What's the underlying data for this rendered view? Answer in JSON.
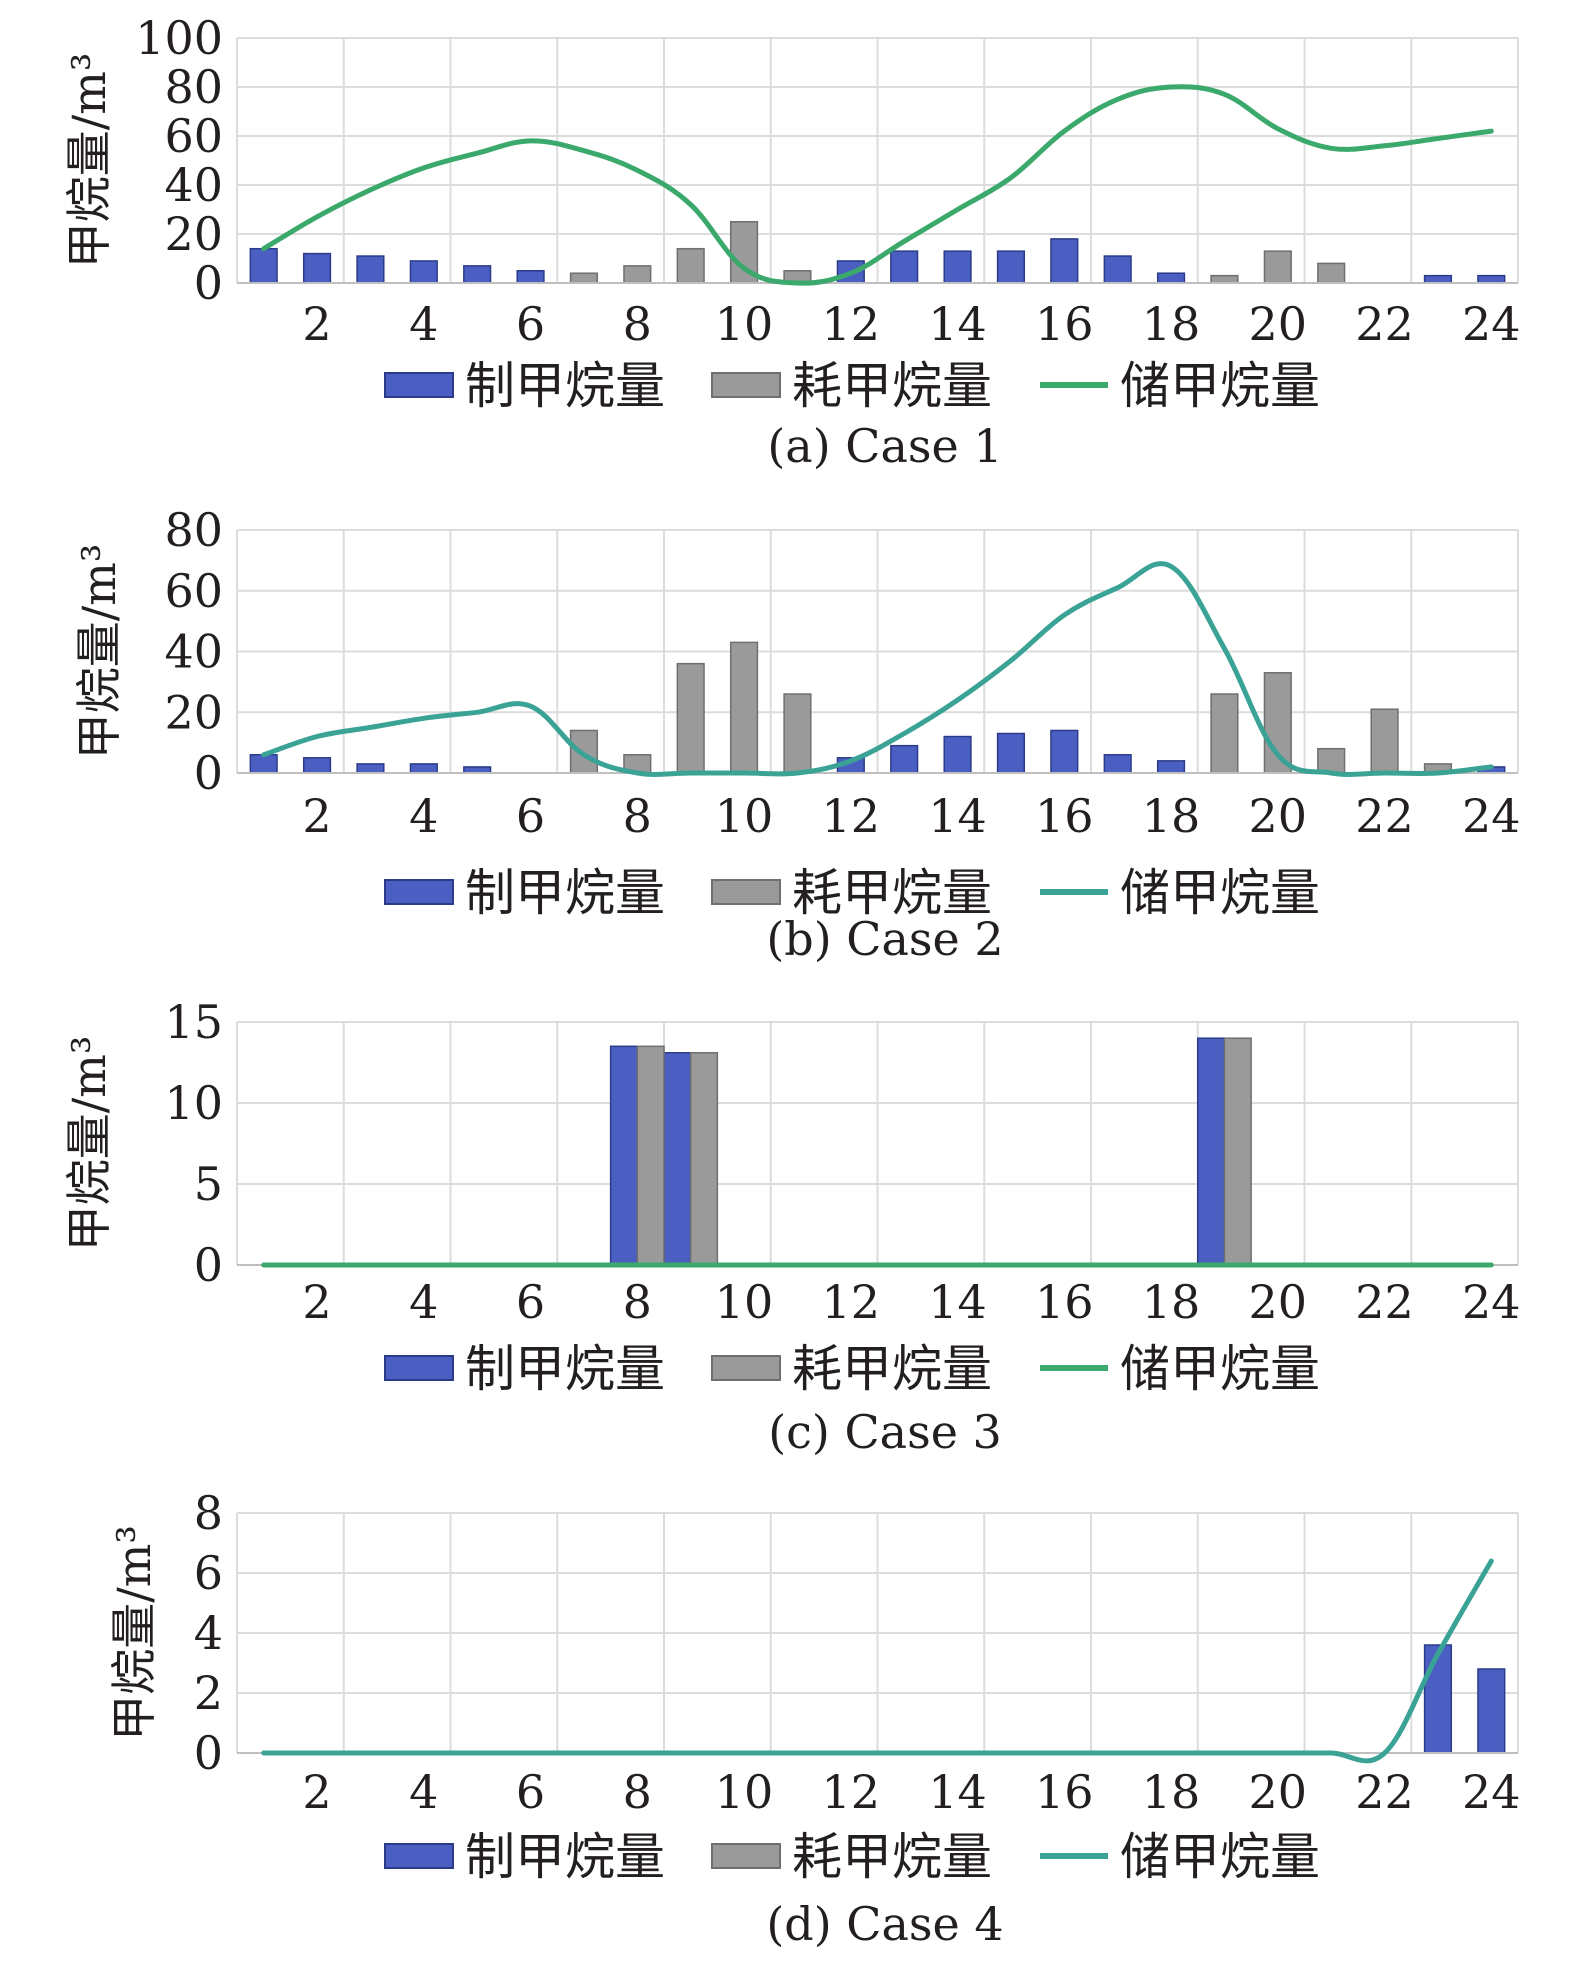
{
  "chart_data": [
    {
      "type": "bar",
      "caption": "(a) Case 1",
      "ylabel": "甲烷量/m³",
      "ylim": [
        0,
        100
      ],
      "yticks": [
        0,
        20,
        40,
        60,
        80,
        100
      ],
      "x": [
        1,
        2,
        3,
        4,
        5,
        6,
        7,
        8,
        9,
        10,
        11,
        12,
        13,
        14,
        15,
        16,
        17,
        18,
        19,
        20,
        21,
        22,
        23,
        24
      ],
      "xticks": [
        2,
        4,
        6,
        8,
        10,
        12,
        14,
        16,
        18,
        20,
        22,
        24
      ],
      "grid": true,
      "legend_position": "bottom",
      "series": [
        {
          "name": "制甲烷量",
          "type": "bar",
          "color": "#4a5fc1",
          "values": [
            14,
            12,
            11,
            9,
            7,
            5,
            0,
            0,
            0,
            0,
            0,
            9,
            13,
            13,
            13,
            18,
            11,
            4,
            0,
            0,
            0,
            0,
            3,
            3
          ]
        },
        {
          "name": "耗甲烷量",
          "type": "bar",
          "color": "#9a9a9a",
          "values": [
            0,
            0,
            0,
            0,
            0,
            0,
            4,
            7,
            14,
            25,
            5,
            0,
            0,
            0,
            0,
            0,
            0,
            0,
            3,
            13,
            8,
            0,
            0,
            0
          ]
        },
        {
          "name": "储甲烷量",
          "type": "line",
          "color": "#3aa96b",
          "values": [
            14,
            27,
            38,
            47,
            53,
            58,
            54,
            46,
            32,
            6,
            0,
            4,
            17,
            30,
            43,
            62,
            75,
            80,
            77,
            63,
            55,
            56,
            59,
            62
          ]
        }
      ]
    },
    {
      "type": "bar",
      "caption": "(b) Case 2",
      "ylabel": "甲烷量/m³",
      "ylim": [
        0,
        80
      ],
      "yticks": [
        0,
        20,
        40,
        60,
        80
      ],
      "x": [
        1,
        2,
        3,
        4,
        5,
        6,
        7,
        8,
        9,
        10,
        11,
        12,
        13,
        14,
        15,
        16,
        17,
        18,
        19,
        20,
        21,
        22,
        23,
        24
      ],
      "xticks": [
        2,
        4,
        6,
        8,
        10,
        12,
        14,
        16,
        18,
        20,
        22,
        24
      ],
      "grid": true,
      "legend_position": "bottom",
      "series": [
        {
          "name": "制甲烷量",
          "type": "bar",
          "color": "#4a5fc1",
          "values": [
            6,
            5,
            3,
            3,
            2,
            0,
            0,
            0,
            0,
            0,
            0,
            5,
            9,
            12,
            13,
            14,
            6,
            4,
            0,
            0,
            0,
            0,
            0,
            2
          ]
        },
        {
          "name": "耗甲烷量",
          "type": "bar",
          "color": "#9a9a9a",
          "values": [
            0,
            0,
            0,
            0,
            0,
            0,
            14,
            6,
            36,
            43,
            26,
            0,
            0,
            0,
            0,
            0,
            0,
            0,
            26,
            33,
            8,
            21,
            3,
            0
          ]
        },
        {
          "name": "储甲烷量",
          "type": "line",
          "color": "#3aa396",
          "values": [
            6,
            12,
            15,
            18,
            20,
            22,
            6,
            0,
            0,
            0,
            0,
            4,
            13,
            24,
            37,
            52,
            61,
            68,
            41,
            6,
            0,
            0,
            0,
            2
          ]
        }
      ]
    },
    {
      "type": "bar",
      "caption": "(c) Case 3",
      "ylabel": "甲烷量/m³",
      "ylim": [
        0,
        15
      ],
      "yticks": [
        0,
        5,
        10,
        15
      ],
      "x": [
        1,
        2,
        3,
        4,
        5,
        6,
        7,
        8,
        9,
        10,
        11,
        12,
        13,
        14,
        15,
        16,
        17,
        18,
        19,
        20,
        21,
        22,
        23,
        24
      ],
      "xticks": [
        2,
        4,
        6,
        8,
        10,
        12,
        14,
        16,
        18,
        20,
        22,
        24
      ],
      "grid": true,
      "legend_position": "bottom",
      "series": [
        {
          "name": "制甲烷量",
          "type": "bar",
          "color": "#4a5fc1",
          "values": [
            0,
            0,
            0,
            0,
            0,
            0,
            0,
            13.5,
            13.1,
            0,
            0,
            0,
            0,
            0,
            0,
            0,
            0,
            0,
            14,
            0,
            0,
            0,
            0,
            0
          ]
        },
        {
          "name": "耗甲烷量",
          "type": "bar",
          "color": "#9a9a9a",
          "values": [
            0,
            0,
            0,
            0,
            0,
            0,
            0,
            13.5,
            13.1,
            0,
            0,
            0,
            0,
            0,
            0,
            0,
            0,
            0,
            14,
            0,
            0,
            0,
            0,
            0
          ]
        },
        {
          "name": "储甲烷量",
          "type": "line",
          "color": "#3aa96b",
          "values": [
            0,
            0,
            0,
            0,
            0,
            0,
            0,
            0,
            0,
            0,
            0,
            0,
            0,
            0,
            0,
            0,
            0,
            0,
            0,
            0,
            0,
            0,
            0,
            0
          ]
        }
      ]
    },
    {
      "type": "bar",
      "caption": "(d) Case 4",
      "ylabel": "甲烷量/m³",
      "ylim": [
        0,
        8
      ],
      "yticks": [
        0,
        2,
        4,
        6,
        8
      ],
      "x": [
        1,
        2,
        3,
        4,
        5,
        6,
        7,
        8,
        9,
        10,
        11,
        12,
        13,
        14,
        15,
        16,
        17,
        18,
        19,
        20,
        21,
        22,
        23,
        24
      ],
      "xticks": [
        2,
        4,
        6,
        8,
        10,
        12,
        14,
        16,
        18,
        20,
        22,
        24
      ],
      "grid": true,
      "legend_position": "bottom",
      "series": [
        {
          "name": "制甲烷量",
          "type": "bar",
          "color": "#4a5fc1",
          "values": [
            0,
            0,
            0,
            0,
            0,
            0,
            0,
            0,
            0,
            0,
            0,
            0,
            0,
            0,
            0,
            0,
            0,
            0,
            0,
            0,
            0,
            0,
            3.6,
            2.8
          ]
        },
        {
          "name": "耗甲烷量",
          "type": "bar",
          "color": "#9a9a9a",
          "values": [
            0,
            0,
            0,
            0,
            0,
            0,
            0,
            0,
            0,
            0,
            0,
            0,
            0,
            0,
            0,
            0,
            0,
            0,
            0,
            0,
            0,
            0,
            0,
            0
          ]
        },
        {
          "name": "储甲烷量",
          "type": "line",
          "color": "#3aa396",
          "values": [
            0,
            0,
            0,
            0,
            0,
            0,
            0,
            0,
            0,
            0,
            0,
            0,
            0,
            0,
            0,
            0,
            0,
            0,
            0,
            0,
            0,
            0,
            3.3,
            6.4
          ]
        }
      ]
    }
  ]
}
